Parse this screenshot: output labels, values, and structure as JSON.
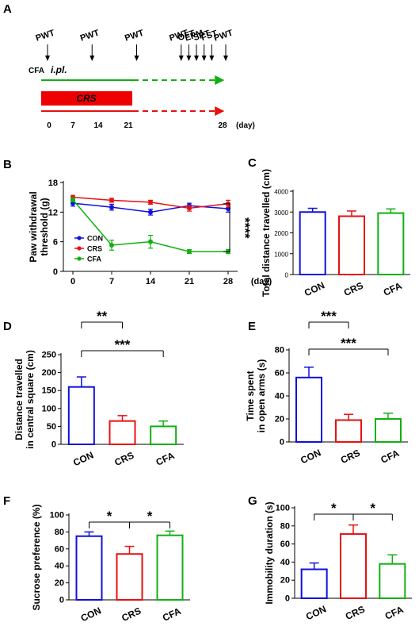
{
  "colors": {
    "CON": "#1010e0",
    "CRS": "#e81010",
    "CFA": "#10b010",
    "axis": "#000000",
    "crs_bar": "#ee0000"
  },
  "panel_a": {
    "label": "A",
    "tests": [
      {
        "label": "PWT",
        "day": 0
      },
      {
        "label": "PWT",
        "day": 7
      },
      {
        "label": "PWT",
        "day": 14
      },
      {
        "label": "PWT",
        "day": 21
      },
      {
        "label": "OFT",
        "day": 22.2
      },
      {
        "label": "EPM",
        "day": 23.4
      },
      {
        "label": "SPT",
        "day": 24.6
      },
      {
        "label": "FST",
        "day": 25.8
      },
      {
        "label": "PWT",
        "day": 28
      }
    ],
    "cfa_label": "CFA",
    "cfa_route": "i.pl.",
    "crs_label": "CRS",
    "days": [
      "0",
      "7",
      "14",
      "21",
      "28"
    ],
    "day_unit": "(day)"
  },
  "chart_data": [
    {
      "panel": "B",
      "type": "line",
      "x": [
        0,
        7,
        14,
        21,
        28
      ],
      "xticks": [
        "0",
        "7",
        "14",
        "21",
        "28"
      ],
      "xunit": "(day)",
      "ylabel": "Paw withdrawal threshold (g)",
      "ylim": [
        0,
        18
      ],
      "yticks": [
        0,
        6,
        12,
        18
      ],
      "series": [
        {
          "name": "CON",
          "values": [
            13.8,
            13.0,
            12.0,
            13.3,
            12.7
          ],
          "err": [
            0.6,
            0.6,
            0.6,
            0.5,
            0.7
          ]
        },
        {
          "name": "CRS",
          "values": [
            15.0,
            14.4,
            14.0,
            12.8,
            13.7
          ],
          "err": [
            0.4,
            0.4,
            0.4,
            0.6,
            0.7
          ]
        },
        {
          "name": "CFA",
          "values": [
            14.5,
            5.3,
            6.0,
            4.0,
            4.0
          ],
          "err": [
            0.4,
            1.0,
            1.3,
            0.4,
            0.4
          ]
        }
      ],
      "significance": "****",
      "legend": [
        "CON",
        "CRS",
        "CFA"
      ],
      "legend_position": "bottom-left"
    },
    {
      "panel": "C",
      "type": "bar",
      "categories": [
        "CON",
        "CRS",
        "CFA"
      ],
      "values": [
        3000,
        2800,
        2950
      ],
      "err": [
        180,
        250,
        200
      ],
      "ylabel": "Total distance travelled (cm)",
      "ylim": [
        0,
        4000
      ],
      "yticks": [
        0,
        1000,
        2000,
        3000,
        4000
      ],
      "comparisons": []
    },
    {
      "panel": "D",
      "type": "bar",
      "categories": [
        "CON",
        "CRS",
        "CFA"
      ],
      "values": [
        160,
        65,
        50
      ],
      "err": [
        28,
        15,
        15
      ],
      "ylabel_lines": [
        "Distance travelled",
        "in  central square (cm)"
      ],
      "ylim": [
        0,
        250
      ],
      "yticks": [
        0,
        50,
        100,
        150,
        200,
        250
      ],
      "comparisons": [
        {
          "from": 0,
          "to": 1,
          "label": "**"
        },
        {
          "from": 0,
          "to": 2,
          "label": "***"
        }
      ]
    },
    {
      "panel": "E",
      "type": "bar",
      "categories": [
        "CON",
        "CRS",
        "CFA"
      ],
      "values": [
        56,
        19,
        20
      ],
      "err": [
        9,
        5,
        5
      ],
      "ylabel_lines": [
        "Time spent",
        "in open arms (s)"
      ],
      "ylim": [
        0,
        80
      ],
      "yticks": [
        0,
        20,
        40,
        60,
        80
      ],
      "comparisons": [
        {
          "from": 0,
          "to": 1,
          "label": "***"
        },
        {
          "from": 0,
          "to": 2,
          "label": "***"
        }
      ]
    },
    {
      "panel": "F",
      "type": "bar",
      "categories": [
        "CON",
        "CRS",
        "CFA"
      ],
      "values": [
        75,
        54,
        76
      ],
      "err": [
        5,
        9,
        5
      ],
      "ylabel": "Sucrose preference (%)",
      "ylim": [
        0,
        100
      ],
      "yticks": [
        0,
        20,
        40,
        60,
        80,
        100
      ],
      "comparisons": [
        {
          "from": 0,
          "to": 1,
          "label": "*"
        },
        {
          "from": 1,
          "to": 2,
          "label": "*"
        }
      ]
    },
    {
      "panel": "G",
      "type": "bar",
      "categories": [
        "CON",
        "CRS",
        "CFA"
      ],
      "values": [
        32,
        71,
        38
      ],
      "err": [
        7,
        10,
        10
      ],
      "ylabel": "Immobility duration (s)",
      "ylim": [
        0,
        100
      ],
      "yticks": [
        0,
        20,
        40,
        60,
        80,
        100
      ],
      "comparisons": [
        {
          "from": 0,
          "to": 1,
          "label": "*"
        },
        {
          "from": 1,
          "to": 2,
          "label": "*"
        }
      ]
    }
  ]
}
